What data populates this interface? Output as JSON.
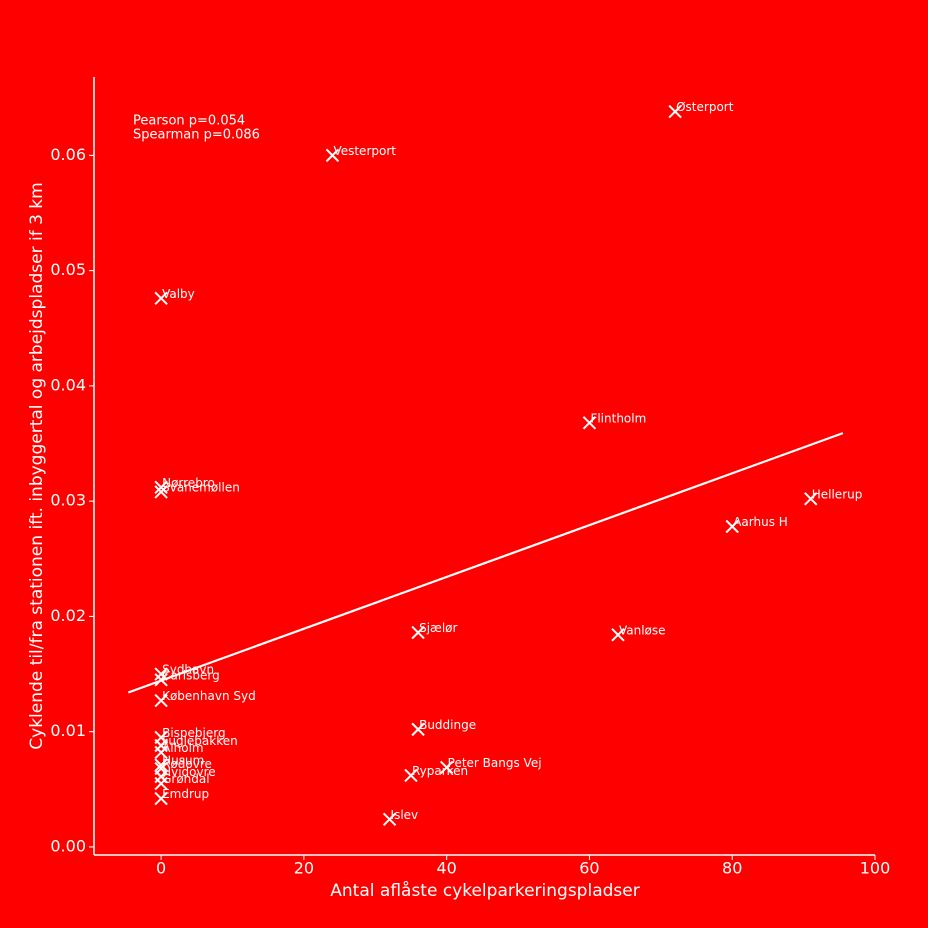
{
  "chart_data": {
    "type": "scatter",
    "x_label": "Antal aflåste cykelparkeringspladser",
    "y_label": "Cyklende til/fra stationen ift. inbyggertal og arbejdspladser if 3 km",
    "annotations": [
      "Pearson p=0.054",
      "Spearman p=0.086"
    ],
    "labels": [
      "Østerport",
      "Vesterport",
      "Valby",
      "Flintholm",
      "Nørrebro",
      "Svanemøllen",
      "Hellerup",
      "Aarhus H",
      "Sjælør",
      "Vanløse",
      "Sydhavn",
      "Carlsberg",
      "København Syd",
      "Bispebjerg",
      "Buddinge",
      "Fuglebakken",
      "Ålholm",
      "Husum",
      "Peter Bangs Vej",
      "Rødovre",
      "Ryparken",
      "Hvidovre",
      "Grøndal",
      "Emdrup",
      "Islev"
    ],
    "x": [
      72,
      24,
      0,
      60,
      0,
      0,
      91,
      80,
      36,
      64,
      0,
      0,
      0,
      0,
      36,
      0,
      0,
      0,
      40,
      0,
      35,
      0,
      0,
      0,
      32
    ],
    "values": [
      0.0638,
      0.06,
      0.0476,
      0.0368,
      0.0312,
      0.0308,
      0.0302,
      0.0278,
      0.0186,
      0.0184,
      0.015,
      0.0145,
      0.0127,
      0.0095,
      0.0102,
      0.0088,
      0.0082,
      0.0071,
      0.0069,
      0.0068,
      0.0062,
      0.0061,
      0.0055,
      0.0042,
      0.0024
    ],
    "color": "#ffffff",
    "trendline": {
      "x": [
        -4.6,
        95.5
      ],
      "values": [
        0.0134,
        0.0359
      ],
      "color": "#ffffff"
    },
    "xlim": [
      -9.4,
      100
    ],
    "ylim": [
      -0.0007,
      0.0668
    ],
    "xticks": [
      0,
      20,
      40,
      60,
      80,
      100
    ],
    "yticks": [
      {
        "value": 0,
        "label": "0.00"
      },
      0.01,
      0.02,
      0.03,
      0.04,
      0.05,
      0.06
    ],
    "grid": false
  }
}
